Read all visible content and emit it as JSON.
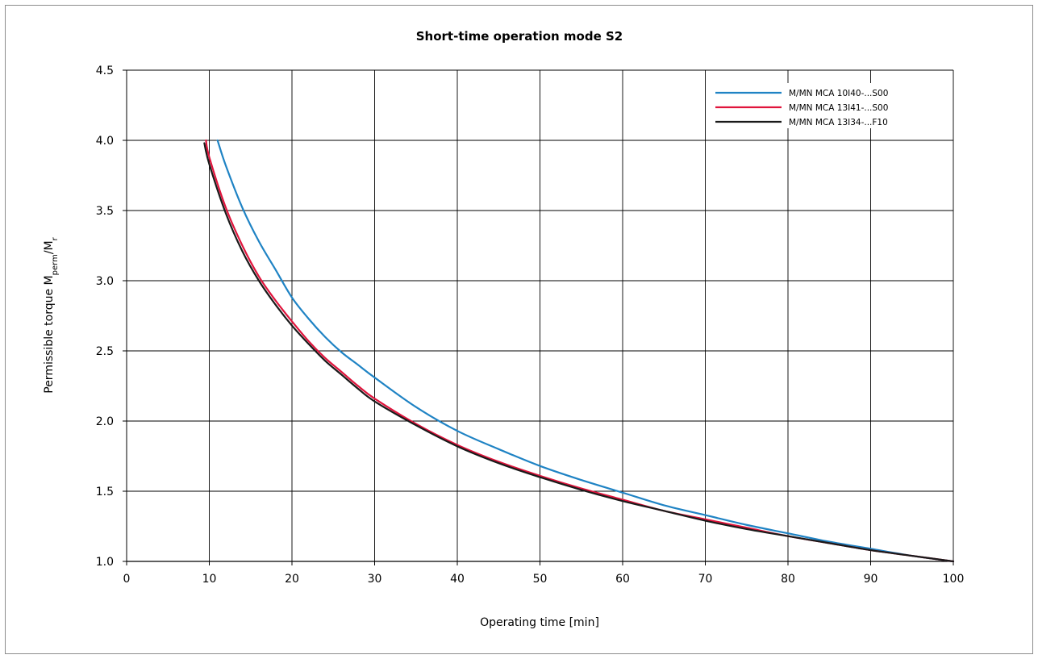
{
  "chart_data": {
    "type": "line",
    "title": "Short-time operation mode S2",
    "xlabel": "Operating time [min]",
    "ylabel": {
      "prefix": "Permissible torque M",
      "sub1": "perm",
      "mid": "/M",
      "sub2": "r"
    },
    "xlim": [
      0,
      100
    ],
    "ylim": [
      1.0,
      4.5
    ],
    "x_ticks": [
      "0",
      "10",
      "20",
      "30",
      "40",
      "50",
      "60",
      "70",
      "80",
      "90",
      "100"
    ],
    "y_ticks": [
      "1.0",
      "1.5",
      "2.0",
      "2.5",
      "3.0",
      "3.5",
      "4.0",
      "4.5"
    ],
    "grid": true,
    "legend_position": "top-right",
    "series": [
      {
        "name": "M/MN MCA 10I40-...S00",
        "color": "#1f83c4",
        "x": [
          11.0,
          12,
          14,
          16,
          18,
          20,
          22,
          24,
          26,
          28,
          30,
          35,
          40,
          45,
          50,
          55,
          60,
          65,
          70,
          75,
          80,
          85,
          90,
          95,
          100
        ],
        "y": [
          4.0,
          3.82,
          3.52,
          3.28,
          3.08,
          2.88,
          2.73,
          2.6,
          2.49,
          2.4,
          2.31,
          2.1,
          1.93,
          1.8,
          1.68,
          1.58,
          1.49,
          1.4,
          1.33,
          1.26,
          1.2,
          1.14,
          1.09,
          1.04,
          1.0
        ],
        "_comment": ""
      },
      {
        "name": "M/MN MCA 13I41-...S00",
        "color": "#e0143c",
        "x": [
          9.6,
          10,
          12,
          14,
          16,
          18,
          20,
          22,
          24,
          26,
          28,
          30,
          35,
          40,
          45,
          50,
          55,
          60,
          65,
          70,
          75,
          80,
          85,
          90,
          95,
          100
        ],
        "y": [
          4.0,
          3.88,
          3.52,
          3.25,
          3.03,
          2.86,
          2.71,
          2.57,
          2.45,
          2.35,
          2.25,
          2.16,
          1.98,
          1.83,
          1.71,
          1.61,
          1.52,
          1.44,
          1.36,
          1.3,
          1.24,
          1.18,
          1.13,
          1.08,
          1.04,
          1.0
        ],
        "_comment": ""
      },
      {
        "name": "M/MN MCA 13I34-...F10",
        "color": "#1a1a1a",
        "x": [
          9.4,
          10,
          12,
          14,
          16,
          18,
          20,
          22,
          24,
          26,
          28,
          30,
          35,
          40,
          45,
          50,
          55,
          60,
          65,
          70,
          75,
          80,
          85,
          90,
          95,
          100
        ],
        "y": [
          3.98,
          3.83,
          3.48,
          3.21,
          3.0,
          2.83,
          2.68,
          2.55,
          2.43,
          2.33,
          2.23,
          2.14,
          1.97,
          1.82,
          1.7,
          1.6,
          1.51,
          1.43,
          1.36,
          1.29,
          1.23,
          1.18,
          1.13,
          1.08,
          1.04,
          1.0
        ]
      }
    ]
  }
}
